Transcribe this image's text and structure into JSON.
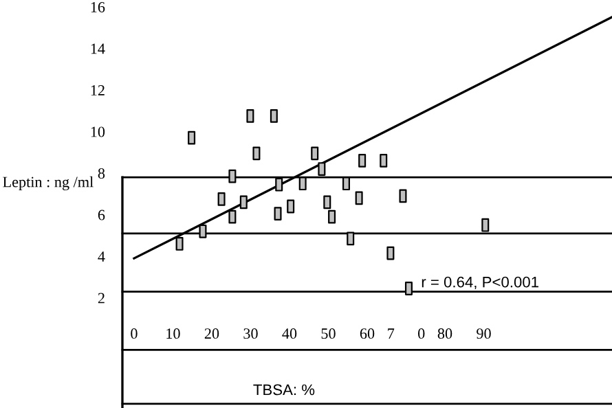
{
  "chart_data": {
    "type": "scatter",
    "xlabel": "TBSA: %",
    "ylabel": "Leptin : ng /ml",
    "annotations": [
      "r = 0.64, P<0.001"
    ],
    "xlim": [
      -3,
      123
    ],
    "ylim": [
      -3.3,
      16
    ],
    "xticks": [
      0,
      10,
      20,
      30,
      40,
      50,
      60,
      {
        "value": 70,
        "label": "7      0"
      },
      80,
      90
    ],
    "yticks": [
      2,
      4,
      6,
      8,
      10,
      12,
      14,
      16
    ],
    "series": [
      {
        "color": "#c0c0c0",
        "marker": "square",
        "x": [
          11.7,
          14.8,
          17.7,
          22.5,
          25.3,
          25.3,
          28.2,
          29.9,
          31.5,
          36.0,
          37.0,
          37.3,
          40.3,
          43.4,
          46.5,
          48.3,
          49.7,
          50.9,
          54.6,
          55.7,
          57.9,
          58.7,
          64.2,
          66.0,
          69.2,
          70.7,
          90.4
        ],
        "values": [
          4.6,
          9.7,
          5.2,
          6.75,
          7.85,
          5.9,
          6.6,
          10.75,
          8.95,
          10.75,
          6.05,
          7.45,
          6.4,
          7.5,
          8.95,
          8.2,
          6.6,
          5.9,
          7.5,
          4.85,
          6.8,
          8.6,
          8.6,
          4.15,
          6.9,
          2.45,
          5.5
        ]
      },
      {
        "type": "line",
        "color": "#000000",
        "x": [
          0,
          122.9
        ],
        "values": [
          3.9,
          15.5
        ]
      }
    ],
    "ref_lines": [
      {
        "axis": "y",
        "value": 7.8,
        "color": "#000000"
      },
      {
        "axis": "y",
        "value": 5.1,
        "color": "#000000"
      },
      {
        "axis": "y",
        "value": 2.3,
        "color": "#000000"
      },
      {
        "axis": "y",
        "value": -0.5,
        "color": "#000000"
      },
      {
        "axis": "y",
        "value": -3.1,
        "color": "#000000"
      }
    ]
  }
}
